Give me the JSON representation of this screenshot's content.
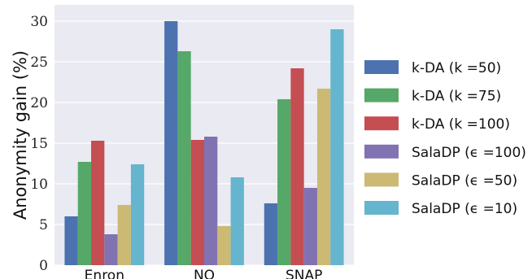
{
  "chart_data": {
    "type": "bar",
    "title": "",
    "xlabel": "",
    "ylabel": "Anonymity gain (%)",
    "categories": [
      "Enron",
      "NO",
      "SNAP"
    ],
    "ylim": [
      0,
      32
    ],
    "yticks": [
      "0",
      "5",
      "10",
      "15",
      "20",
      "25",
      "30"
    ],
    "grid": true,
    "legend_position": "right",
    "series": [
      {
        "name": "k-DA (k =50)",
        "color": "#4c72b0",
        "values": [
          6.0,
          30.0,
          7.6
        ]
      },
      {
        "name": "k-DA (k =75)",
        "color": "#55a868",
        "values": [
          12.7,
          26.3,
          20.4
        ]
      },
      {
        "name": "k-DA (k =100)",
        "color": "#c44e52",
        "values": [
          15.3,
          15.4,
          24.2
        ]
      },
      {
        "name": "SalaDP (ϵ =100)",
        "color": "#8172b2",
        "values": [
          3.8,
          15.8,
          9.5
        ]
      },
      {
        "name": "SalaDP (ϵ =50)",
        "color": "#ccb974",
        "values": [
          7.4,
          4.8,
          21.7
        ]
      },
      {
        "name": "SalaDP (ϵ =10)",
        "color": "#64b5cd",
        "values": [
          12.4,
          10.8,
          29.0
        ]
      }
    ]
  }
}
